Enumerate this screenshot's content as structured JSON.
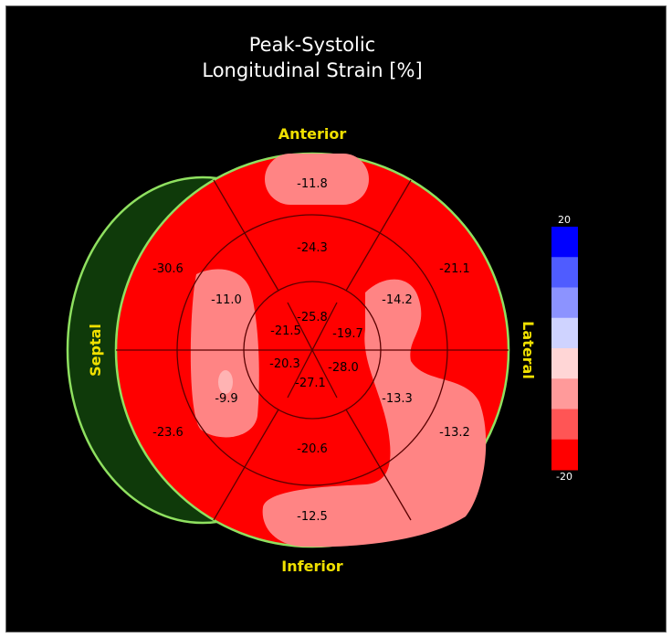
{
  "chart_data": {
    "type": "bullseye",
    "title": [
      "Peak-Systolic",
      "Longitudinal Strain [%]"
    ],
    "orientation": {
      "top": "Anterior",
      "bottom": "Inferior",
      "left": "Septal",
      "right": "Lateral"
    },
    "segments": [
      {
        "ring": "basal",
        "position": "anterior",
        "value": "-11.8"
      },
      {
        "ring": "basal",
        "position": "anterolateral",
        "value": "-21.1"
      },
      {
        "ring": "basal",
        "position": "inferolateral",
        "value": "-13.2"
      },
      {
        "ring": "basal",
        "position": "inferior",
        "value": "-12.5"
      },
      {
        "ring": "basal",
        "position": "inferoseptal",
        "value": "-23.6"
      },
      {
        "ring": "basal",
        "position": "anteroseptal",
        "value": "-30.6"
      },
      {
        "ring": "mid",
        "position": "anterior",
        "value": "-24.3"
      },
      {
        "ring": "mid",
        "position": "anterolateral",
        "value": "-14.2"
      },
      {
        "ring": "mid",
        "position": "inferolateral",
        "value": "-13.3"
      },
      {
        "ring": "mid",
        "position": "inferior",
        "value": "-20.6"
      },
      {
        "ring": "mid",
        "position": "inferoseptal",
        "value": "-9.9"
      },
      {
        "ring": "mid",
        "position": "anteroseptal",
        "value": "-11.0"
      },
      {
        "ring": "apical",
        "position": "anterior",
        "value": "-25.8"
      },
      {
        "ring": "apical",
        "position": "lateral",
        "value": "-19.7"
      },
      {
        "ring": "apical",
        "position": "inferior",
        "value": "-28.0"
      },
      {
        "ring": "apical",
        "position": "septal",
        "value": "-21.5"
      },
      {
        "ring": "apex",
        "position": "septal",
        "value": "-20.3"
      },
      {
        "ring": "apex",
        "position": "inferior",
        "value": "-27.1"
      }
    ],
    "colorbar": {
      "max_label": "20",
      "min_label": "-20",
      "colors": [
        "#0000ff",
        "#4f5cff",
        "#8c93ff",
        "#cfd3ff",
        "#ffd6d6",
        "#ff9a9a",
        "#ff5555",
        "#ff0000"
      ]
    },
    "colors": {
      "background": "#000000",
      "strain_fill": "#ff0000",
      "patch_fill": "#ff8484",
      "outline": "#8fe060",
      "septal_wall": "#0f3a0a"
    }
  }
}
